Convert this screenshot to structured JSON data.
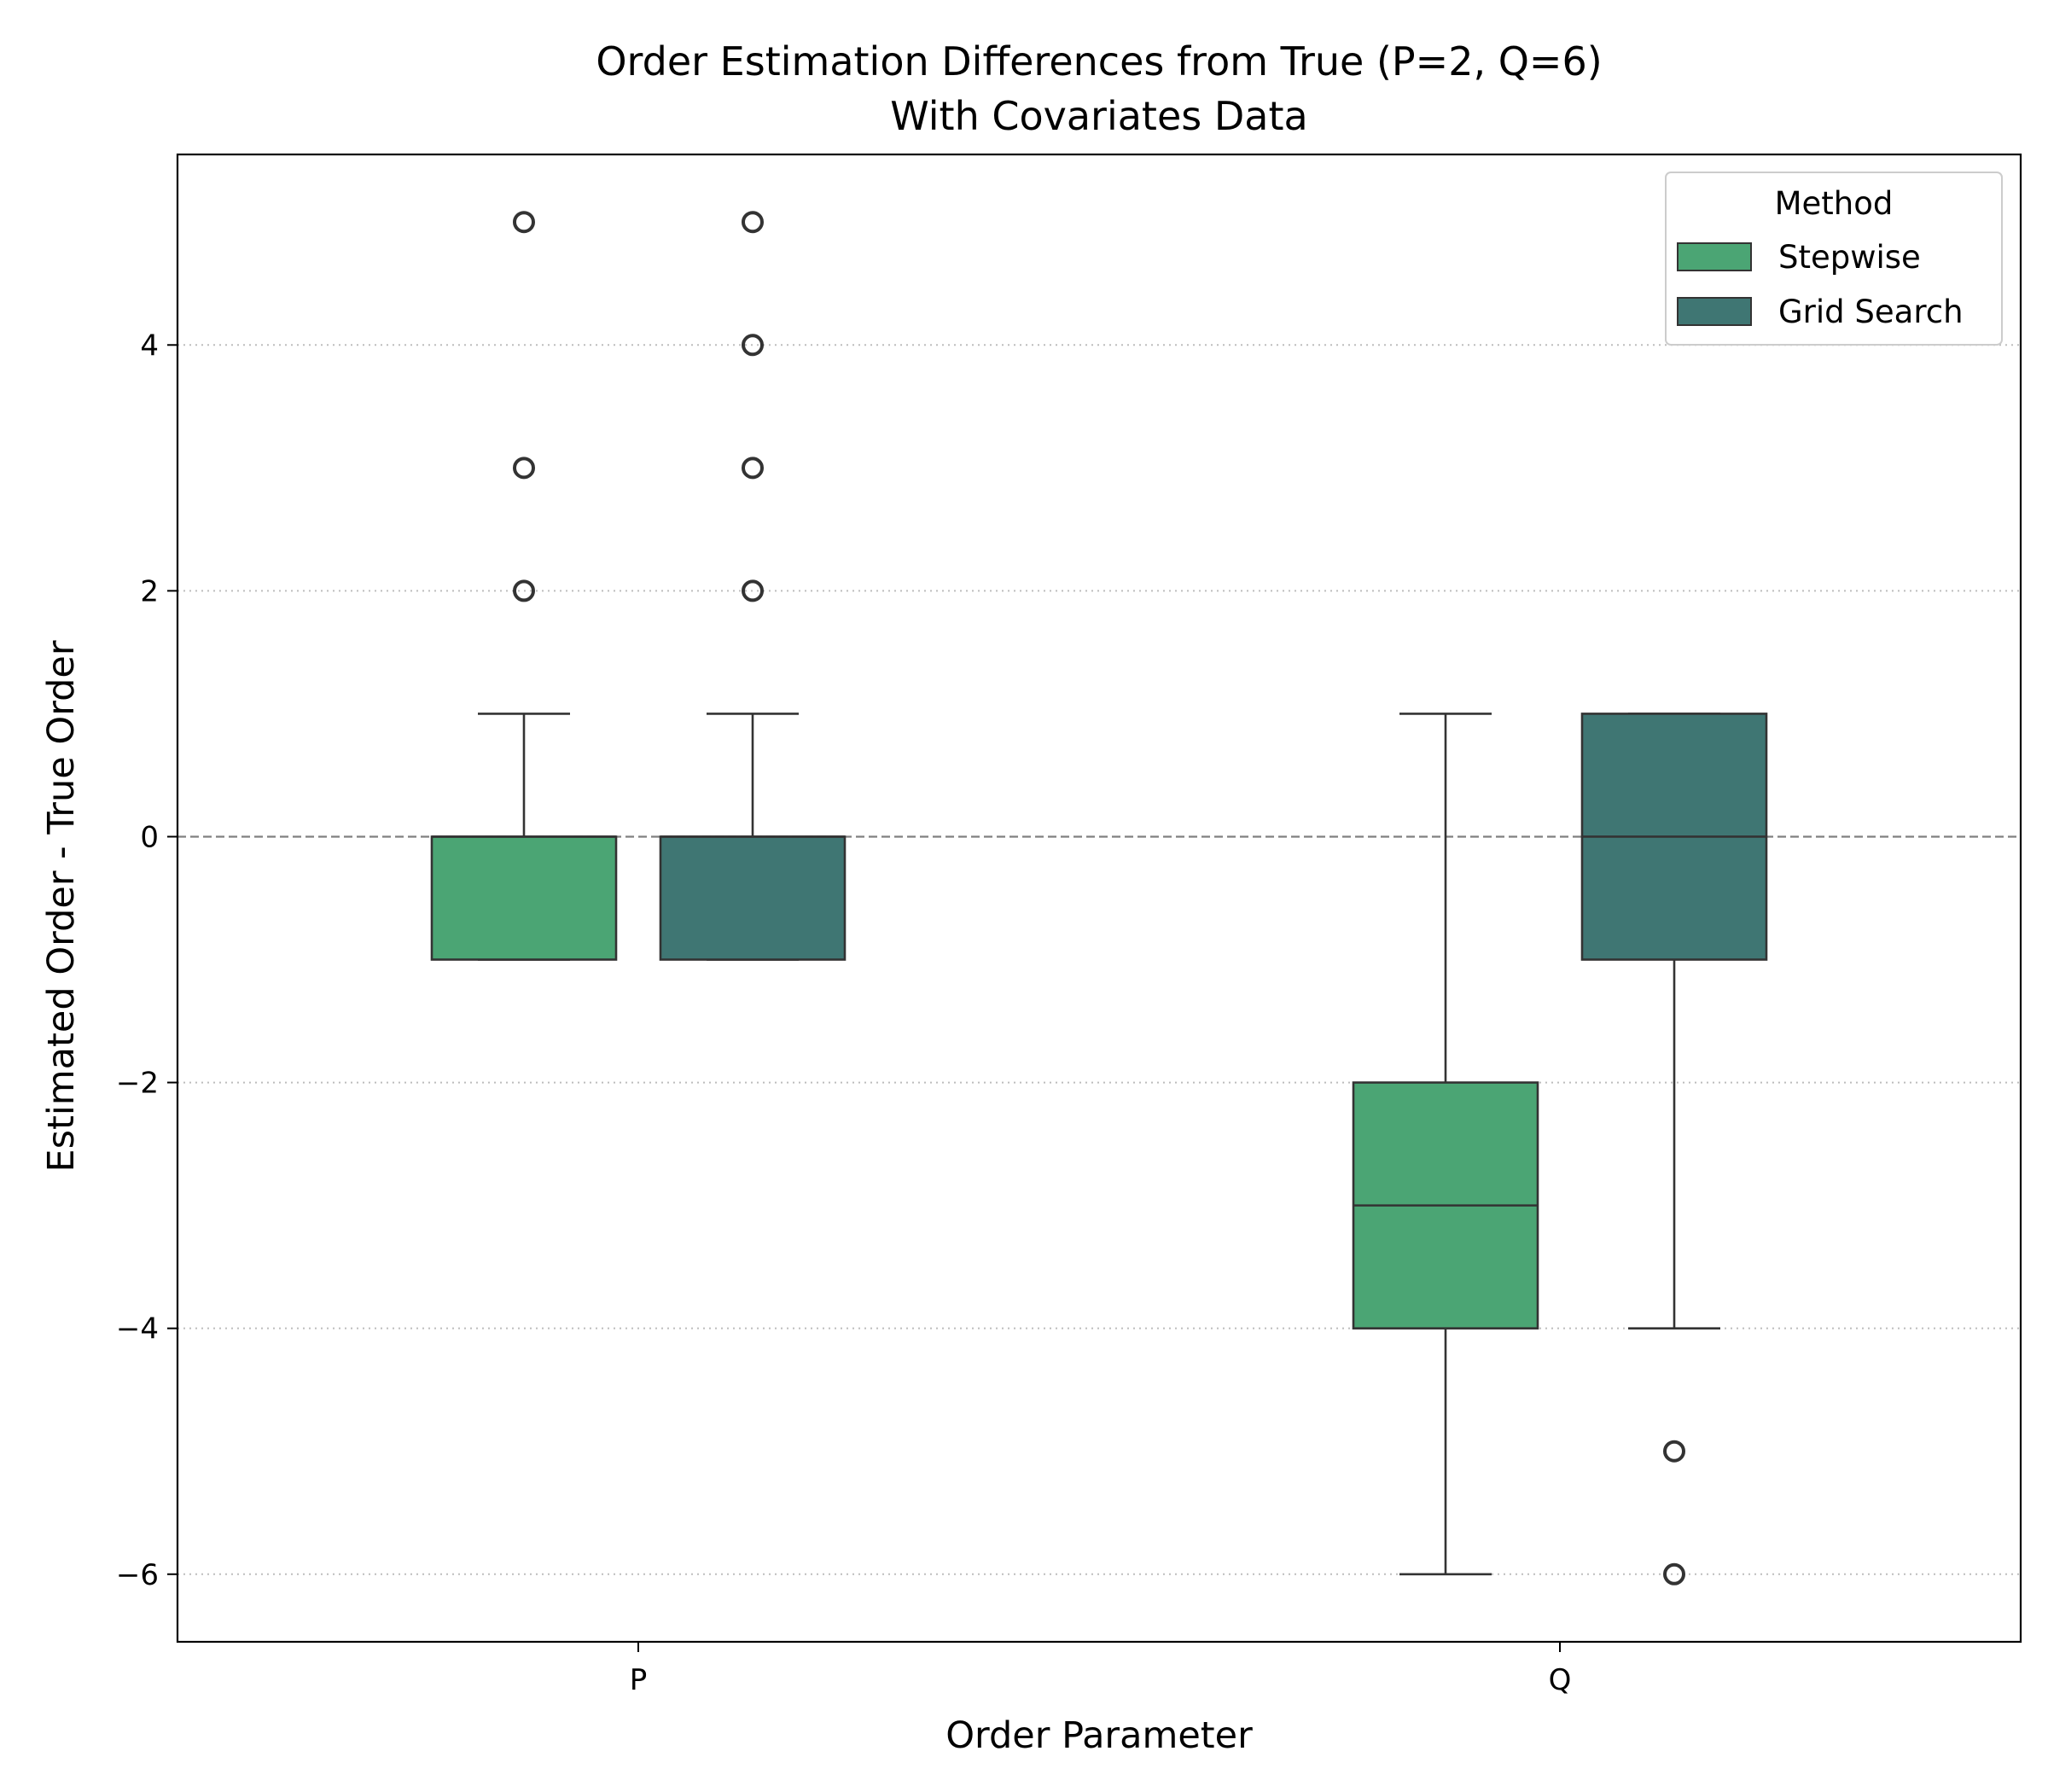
{
  "chart_data": {
    "type": "box",
    "title": "Order Estimation Differences from True (P=2, Q=6)",
    "subtitle": "With Covariates Data",
    "xlabel": "Order Parameter",
    "ylabel": "Estimated Order - True Order",
    "categories": [
      "P",
      "Q"
    ],
    "ylim": [
      -6.55,
      5.55
    ],
    "yticks": [
      -6,
      -4,
      -2,
      0,
      2,
      4
    ],
    "ytick_labels": [
      "−6",
      "−4",
      "−2",
      "0",
      "2",
      "4"
    ],
    "grid": "horizontal dotted",
    "reference_line": 0,
    "legend": {
      "title": "Method",
      "placement": "top-right"
    },
    "series": [
      {
        "name": "Stepwise",
        "color": "#4ba574",
        "boxes": [
          {
            "category": "P",
            "whisker_low": -1,
            "q1": -1,
            "median": 0,
            "q3": 0,
            "whisker_high": 1,
            "outliers": [
              2,
              3,
              5
            ]
          },
          {
            "category": "Q",
            "whisker_low": -6,
            "q1": -4,
            "median": -3,
            "q3": -2,
            "whisker_high": 1,
            "outliers": []
          }
        ]
      },
      {
        "name": "Grid Search",
        "color": "#3f7673",
        "boxes": [
          {
            "category": "P",
            "whisker_low": -1,
            "q1": -1,
            "median": 0,
            "q3": 0,
            "whisker_high": 1,
            "outliers": [
              2,
              3,
              4,
              5
            ]
          },
          {
            "category": "Q",
            "whisker_low": -4,
            "q1": -1,
            "median": 0,
            "q3": 1,
            "whisker_high": 1,
            "outliers": [
              -5,
              -6
            ]
          }
        ]
      }
    ]
  }
}
